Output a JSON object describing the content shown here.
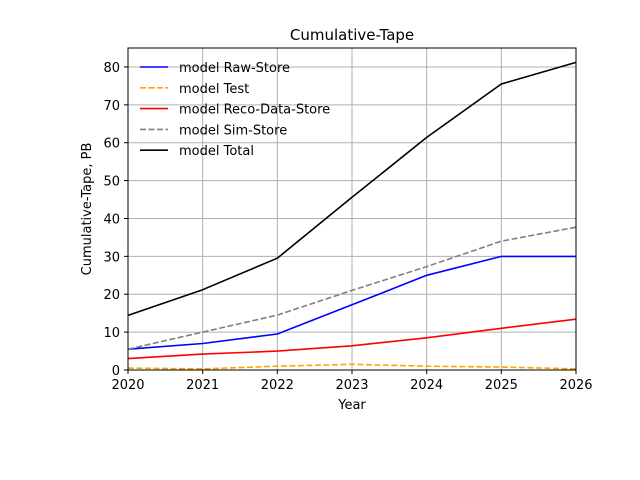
{
  "chart_data": {
    "type": "line",
    "title": "Cumulative-Tape",
    "xlabel": "Year",
    "ylabel": "Cumulative-Tape, PB",
    "x": [
      2020,
      2021,
      2022,
      2023,
      2024,
      2025,
      2026
    ],
    "xlim": [
      2020,
      2026
    ],
    "ylim": [
      0,
      85
    ],
    "xticks": [
      "2020",
      "2021",
      "2022",
      "2023",
      "2024",
      "2025",
      "2026"
    ],
    "yticks": [
      "0",
      "10",
      "20",
      "30",
      "40",
      "50",
      "60",
      "70",
      "80"
    ],
    "grid": true,
    "legend_position": "top-left",
    "series": [
      {
        "name": "model Raw-Store",
        "color": "#0000ff",
        "dash": "solid",
        "values": [
          5.5,
          7.0,
          9.5,
          17.2,
          25.0,
          30.0,
          30.0
        ]
      },
      {
        "name": "model Test",
        "color": "#ffa500",
        "dash": "dashed",
        "values": [
          0.5,
          0.3,
          1.0,
          1.5,
          1.0,
          0.8,
          0.3
        ]
      },
      {
        "name": "model Reco-Data-Store",
        "color": "#ff0000",
        "dash": "solid",
        "values": [
          3.0,
          4.2,
          5.0,
          6.4,
          8.5,
          11.0,
          13.4
        ]
      },
      {
        "name": "model Sim-Store",
        "color": "#808080",
        "dash": "dashed",
        "values": [
          5.5,
          10.0,
          14.5,
          21.0,
          27.3,
          34.0,
          37.7
        ]
      },
      {
        "name": "model Total",
        "color": "#000000",
        "dash": "solid",
        "values": [
          14.4,
          21.2,
          29.5,
          45.6,
          61.4,
          75.5,
          81.2
        ]
      }
    ]
  }
}
